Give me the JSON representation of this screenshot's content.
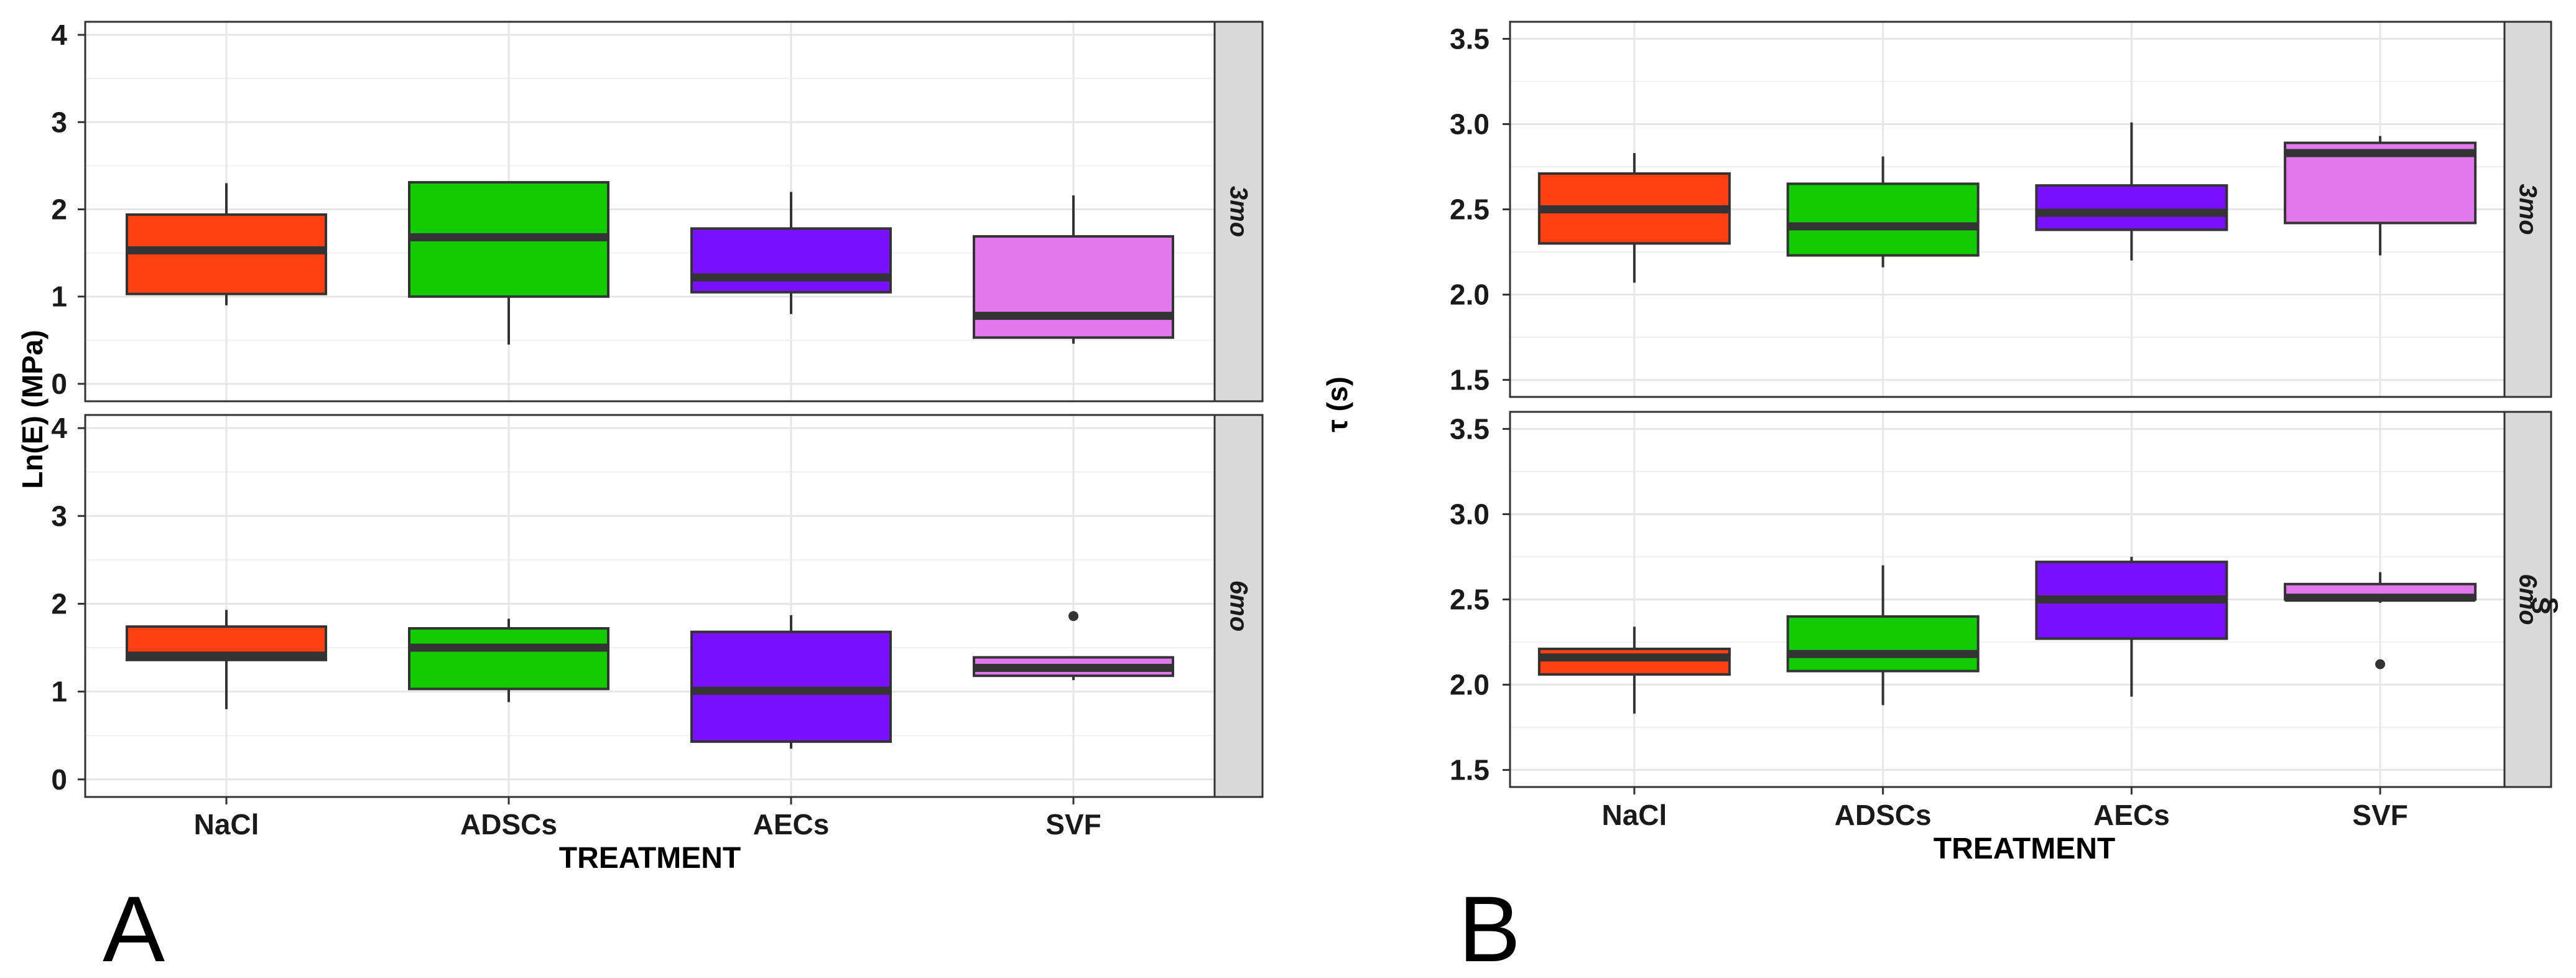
{
  "chart_data": [
    {
      "type": "box",
      "panel_label": "A",
      "xlabel": "TREATMENT",
      "ylabel": "Ln(E) (MPa)",
      "categories": [
        "NaCl",
        "ADSCs",
        "AECs",
        "SVF"
      ],
      "colors": [
        "#FF4010",
        "#10CC00",
        "#7A10FF",
        "#E278EE"
      ],
      "ylim": [
        -0.2,
        4.15
      ],
      "yticks": [
        "0",
        "1",
        "2",
        "3",
        "4"
      ],
      "grid": true,
      "facets": [
        {
          "label": "3mo",
          "boxes": [
            {
              "min": 0.9,
              "q1": 1.03,
              "median": 1.53,
              "q3": 1.94,
              "max": 2.3
            },
            {
              "min": 0.45,
              "q1": 1.0,
              "median": 1.68,
              "q3": 2.31,
              "max": 2.31
            },
            {
              "min": 0.8,
              "q1": 1.05,
              "median": 1.22,
              "q3": 1.78,
              "max": 2.2
            },
            {
              "min": 0.46,
              "q1": 0.53,
              "median": 0.78,
              "q3": 1.69,
              "max": 2.16
            }
          ]
        },
        {
          "label": "6mo",
          "boxes": [
            {
              "min": 0.8,
              "q1": 1.36,
              "median": 1.41,
              "q3": 1.74,
              "max": 1.93
            },
            {
              "min": 0.88,
              "q1": 1.03,
              "median": 1.5,
              "q3": 1.72,
              "max": 1.83
            },
            {
              "min": 0.35,
              "q1": 0.43,
              "median": 1.01,
              "q3": 1.68,
              "max": 1.87
            },
            {
              "min": 1.13,
              "q1": 1.18,
              "median": 1.27,
              "q3": 1.39,
              "max": 1.39,
              "outliers": [
                1.86
              ]
            }
          ]
        }
      ]
    },
    {
      "type": "box",
      "panel_label": "B",
      "xlabel": "TREATMENT",
      "ylabel": "τ (s)",
      "categories": [
        "NaCl",
        "ADSCs",
        "AECs",
        "SVF"
      ],
      "colors": [
        "#FF4010",
        "#10CC00",
        "#7A10FF",
        "#E278EE"
      ],
      "ylim": [
        1.4,
        3.6
      ],
      "yticks": [
        "1.5",
        "2.0",
        "2.5",
        "3.0",
        "3.5"
      ],
      "grid": true,
      "facets": [
        {
          "label": "3mo",
          "boxes": [
            {
              "min": 2.07,
              "q1": 2.3,
              "median": 2.5,
              "q3": 2.71,
              "max": 2.83
            },
            {
              "min": 2.16,
              "q1": 2.23,
              "median": 2.4,
              "q3": 2.65,
              "max": 2.81
            },
            {
              "min": 2.2,
              "q1": 2.38,
              "median": 2.48,
              "q3": 2.64,
              "max": 3.01
            },
            {
              "min": 2.23,
              "q1": 2.42,
              "median": 2.83,
              "q3": 2.89,
              "max": 2.93
            }
          ]
        },
        {
          "label": "6mo",
          "marker": "§",
          "boxes": [
            {
              "min": 1.83,
              "q1": 2.06,
              "median": 2.16,
              "q3": 2.21,
              "max": 2.34
            },
            {
              "min": 1.88,
              "q1": 2.08,
              "median": 2.18,
              "q3": 2.4,
              "max": 2.7
            },
            {
              "min": 1.93,
              "q1": 2.27,
              "median": 2.5,
              "q3": 2.72,
              "max": 2.75
            },
            {
              "min": 2.48,
              "q1": 2.5,
              "median": 2.51,
              "q3": 2.59,
              "max": 2.66,
              "outliers": [
                2.12
              ]
            }
          ]
        }
      ]
    }
  ]
}
